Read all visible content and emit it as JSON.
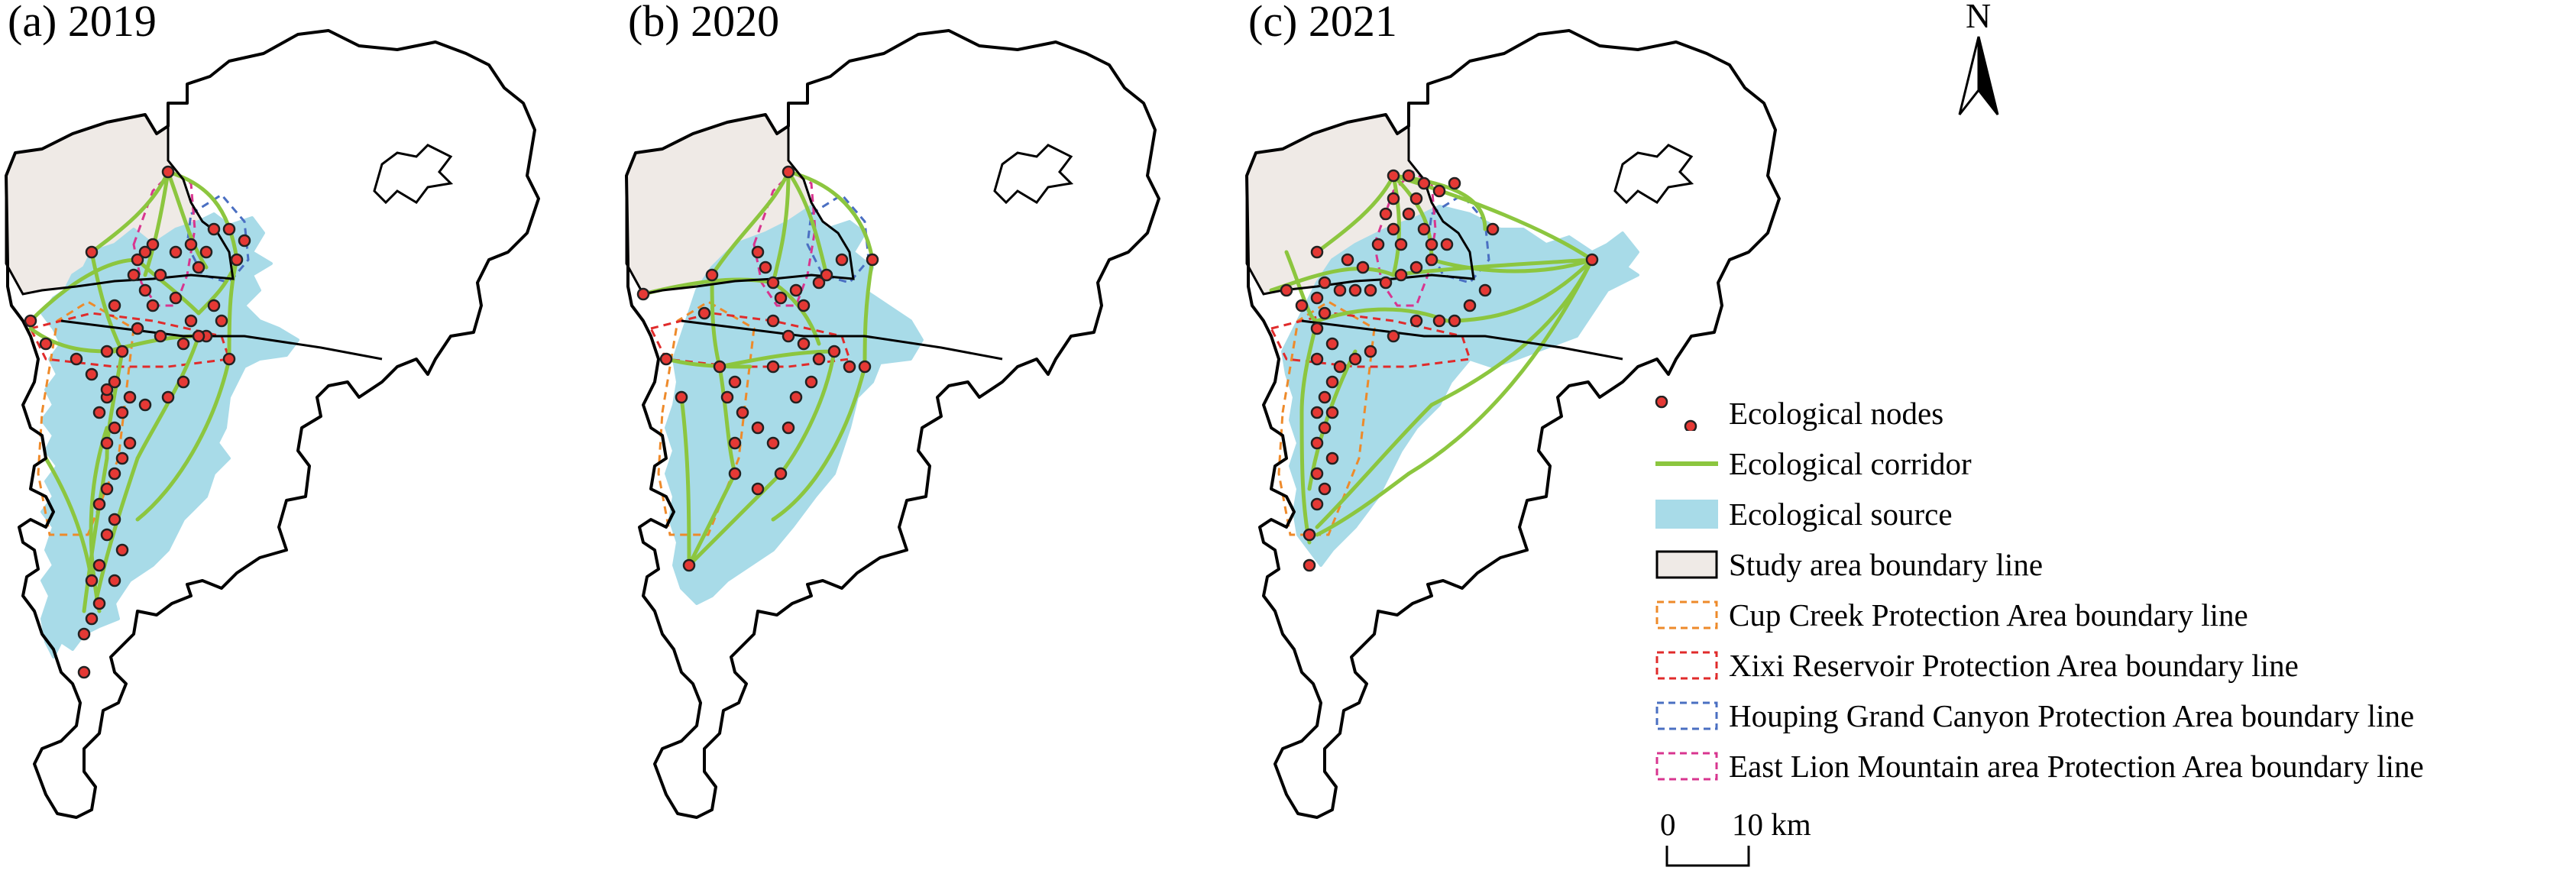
{
  "panels": [
    {
      "id": "a",
      "title": "(a) 2019"
    },
    {
      "id": "b",
      "title": "(b) 2020"
    },
    {
      "id": "c",
      "title": "(c) 2021"
    }
  ],
  "north_arrow": {
    "label": "N",
    "icon": "north-arrow-icon"
  },
  "legend": {
    "items": [
      {
        "label": "Ecological nodes",
        "symbol": "node-dot",
        "color": "#e53935"
      },
      {
        "label": "Ecological corridor",
        "symbol": "line",
        "color": "#8cc63f"
      },
      {
        "label": "Ecological source",
        "symbol": "fill",
        "color": "#a8dbe8"
      },
      {
        "label": "Study area boundary line",
        "symbol": "box",
        "color": "#efeae6"
      },
      {
        "label": "Cup Creek Protection Area boundary line",
        "symbol": "dashed-box",
        "color": "#ee8a2a"
      },
      {
        "label": "Xixi Reservoir Protection Area boundary line",
        "symbol": "dashed-box",
        "color": "#e02b2b"
      },
      {
        "label": "Houping Grand Canyon Protection Area boundary line",
        "symbol": "dashed-box",
        "color": "#4a6fc2"
      },
      {
        "label": "East Lion Mountain area Protection Area boundary line",
        "symbol": "dashed-box",
        "color": "#d8358f"
      }
    ]
  },
  "scale_bar": {
    "start": "0",
    "end": "10 km"
  },
  "colors": {
    "boundary": "#000000",
    "study_area_fill": "#efeae6",
    "source": "#a8dbe8",
    "corridor": "#8cc63f",
    "node": "#e53935"
  }
}
